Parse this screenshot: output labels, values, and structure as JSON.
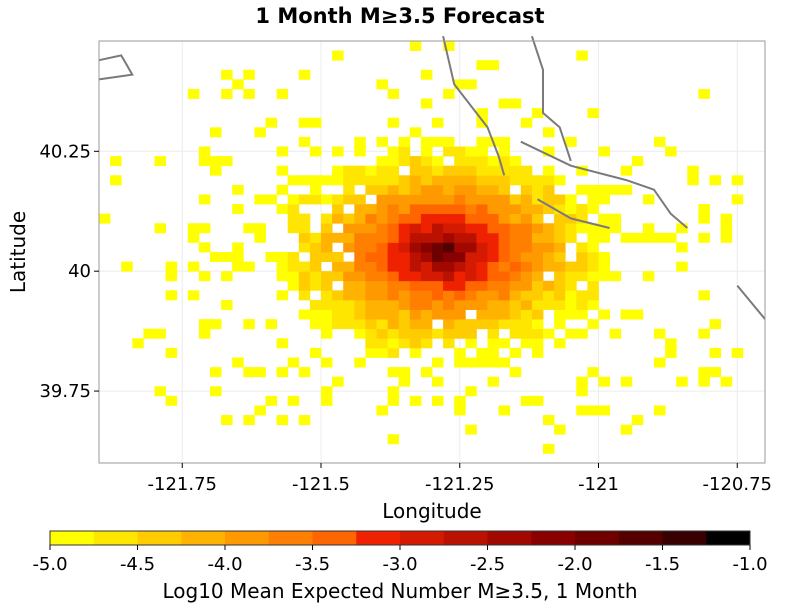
{
  "chart_data": {
    "type": "heatmap",
    "title": "1 Month M≥3.5 Forecast",
    "xlabel": "Longitude",
    "ylabel": "Latitude",
    "xlim": [
      -121.9,
      -120.7
    ],
    "ylim": [
      39.6,
      40.48
    ],
    "x_ticks": [
      {
        "value": -121.75,
        "label": "-121.75"
      },
      {
        "value": -121.5,
        "label": "-121.5"
      },
      {
        "value": -121.25,
        "label": "-121.25"
      },
      {
        "value": -121.0,
        "label": "-121"
      },
      {
        "value": -120.75,
        "label": "-120.75"
      }
    ],
    "y_ticks": [
      {
        "value": 40.25,
        "label": "40.25"
      },
      {
        "value": 40.0,
        "label": "40"
      },
      {
        "value": 39.75,
        "label": "39.75"
      }
    ],
    "grid": true,
    "cell_size_deg": 0.02,
    "peak": {
      "lon": -121.28,
      "lat": 40.04,
      "value": -1.0
    },
    "colorbar": {
      "label": "Log10 Mean Expected Number M≥3.5, 1 Month",
      "min": -5.0,
      "max": -1.0,
      "ticks": [
        {
          "value": -5.0,
          "label": "-5.0"
        },
        {
          "value": -4.5,
          "label": "-4.5"
        },
        {
          "value": -4.0,
          "label": "-4.0"
        },
        {
          "value": -3.5,
          "label": "-3.5"
        },
        {
          "value": -3.0,
          "label": "-3.0"
        },
        {
          "value": -2.5,
          "label": "-2.5"
        },
        {
          "value": -2.0,
          "label": "-2.0"
        },
        {
          "value": -1.5,
          "label": "-1.5"
        },
        {
          "value": -1.0,
          "label": "-1.0"
        }
      ],
      "colors": [
        "#ffff00",
        "#ffe600",
        "#ffcc00",
        "#ffb300",
        "#ff9900",
        "#ff8000",
        "#ff6600",
        "#ee2200",
        "#d41a00",
        "#bb1100",
        "#a00800",
        "#880000",
        "#6e0000",
        "#540000",
        "#380000",
        "#000000"
      ]
    },
    "fault_color": "#7a7a7a",
    "faults": [
      [
        [
          -121.9,
          40.44
        ],
        [
          -121.86,
          40.45
        ],
        [
          -121.84,
          40.41
        ],
        [
          -121.9,
          40.4
        ]
      ],
      [
        [
          -121.28,
          40.49
        ],
        [
          -121.26,
          40.39
        ],
        [
          -121.2,
          40.3
        ],
        [
          -121.18,
          40.24
        ],
        [
          -121.17,
          40.2
        ]
      ],
      [
        [
          -121.12,
          40.49
        ],
        [
          -121.1,
          40.42
        ],
        [
          -121.1,
          40.33
        ],
        [
          -121.07,
          40.3
        ],
        [
          -121.05,
          40.23
        ]
      ],
      [
        [
          -121.14,
          40.27
        ],
        [
          -121.05,
          40.22
        ],
        [
          -120.95,
          40.19
        ],
        [
          -120.9,
          40.17
        ],
        [
          -120.87,
          40.12
        ],
        [
          -120.84,
          40.09
        ]
      ],
      [
        [
          -121.11,
          40.15
        ],
        [
          -121.05,
          40.11
        ],
        [
          -120.98,
          40.09
        ]
      ],
      [
        [
          -120.75,
          39.97
        ],
        [
          -120.7,
          39.9
        ]
      ]
    ]
  }
}
